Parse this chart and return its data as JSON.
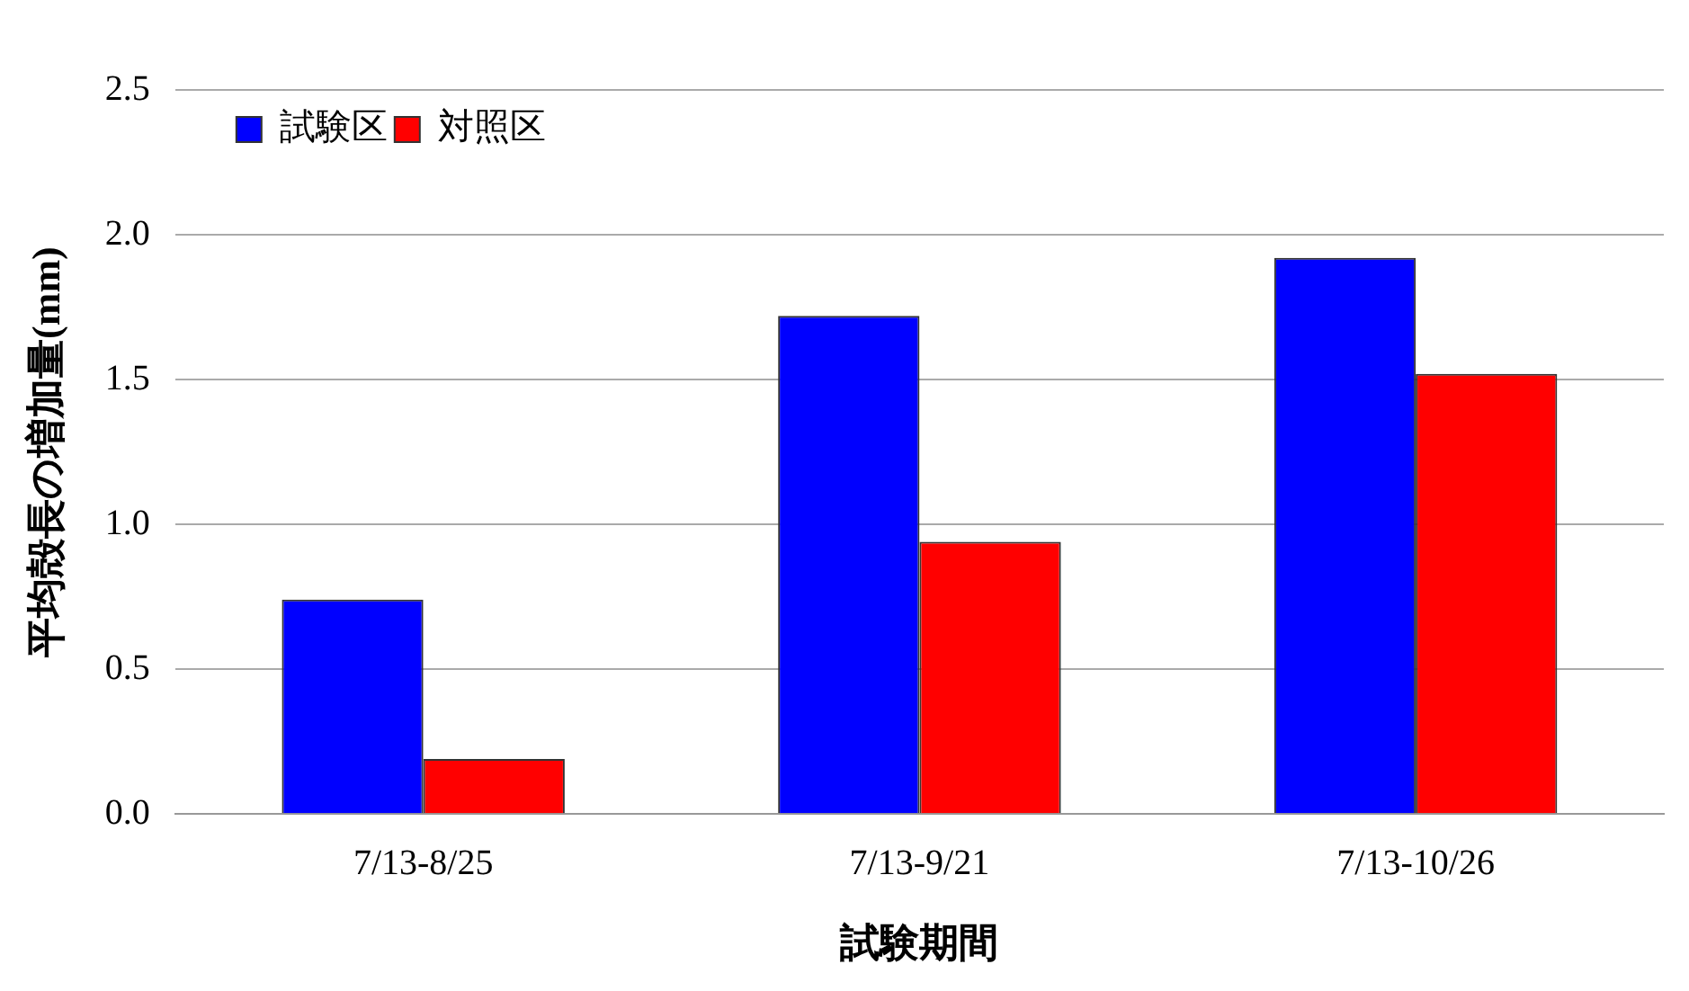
{
  "chart_data": {
    "type": "bar",
    "xlabel": "試験期間",
    "ylabel": "平均殻長の増加量(mm)",
    "categories": [
      "7/13-8/25",
      "7/13-9/21",
      "7/13-10/26"
    ],
    "series": [
      {
        "name": "試験区",
        "color": "#0000ff",
        "values": [
          0.74,
          1.72,
          1.92
        ]
      },
      {
        "name": "対照区",
        "color": "#ff0000",
        "values": [
          0.19,
          0.94,
          1.52
        ]
      }
    ],
    "ylim": [
      0,
      2.5
    ],
    "yticks": [
      {
        "value": 0,
        "label": "0.0"
      },
      {
        "value": 0.5,
        "label": "0.5"
      },
      {
        "value": 1,
        "label": "1.0"
      },
      {
        "value": 1.5,
        "label": "1.5"
      },
      {
        "value": 2,
        "label": "2.0"
      },
      {
        "value": 2.5,
        "label": "2.5"
      }
    ],
    "grid": "y",
    "legend": "top left"
  }
}
